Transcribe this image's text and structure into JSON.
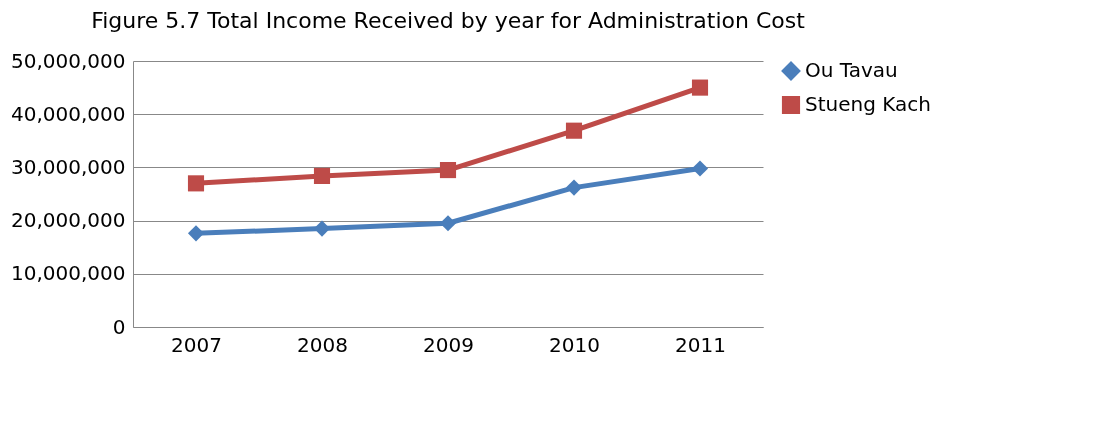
{
  "chart_data": {
    "type": "line",
    "title": "Figure 5.7 Total Income Received by year for Administration Cost",
    "categories": [
      "2007",
      "2008",
      "2009",
      "2010",
      "2011"
    ],
    "series": [
      {
        "name": "Ou Tavau",
        "color": "#4a7ebb",
        "marker": "diamond",
        "values": [
          17600000,
          18500000,
          19500000,
          26200000,
          29800000
        ]
      },
      {
        "name": "Stueng Kach",
        "color": "#be4b48",
        "marker": "square",
        "values": [
          27000000,
          28400000,
          29500000,
          36900000,
          45000000
        ]
      }
    ],
    "ylim": [
      0,
      50000000
    ],
    "yticks": [
      0,
      {
        "value": 10000000,
        "label": "10,000,000"
      },
      {
        "value": 20000000,
        "label": "20,000,000"
      },
      {
        "value": 30000000,
        "label": "30,000,000"
      },
      {
        "value": 40000000,
        "label": "40,000,000"
      },
      {
        "value": 50000000,
        "label": "50,000,000"
      }
    ],
    "grid": "y",
    "legend": "right",
    "line_style": "solid"
  }
}
